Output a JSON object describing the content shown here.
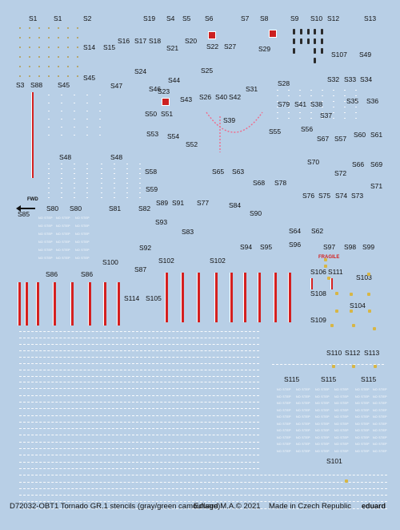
{
  "sheet": {
    "background": "#b8cfe6",
    "labels": [
      "S1",
      "S1",
      "S2",
      "S19",
      "S4",
      "S5",
      "S6",
      "S7",
      "S8",
      "S9",
      "S10",
      "S12",
      "S13",
      "S14",
      "S15",
      "S16",
      "S17",
      "S18",
      "S21",
      "S20",
      "S22",
      "S27",
      "S29",
      "S107",
      "S49",
      "S45",
      "S47",
      "S24",
      "S44",
      "S25",
      "S23",
      "S32",
      "S33",
      "S34",
      "S3",
      "S88",
      "S45",
      "S46",
      "S26",
      "S40",
      "S42",
      "S31",
      "S28",
      "S79",
      "S41",
      "S38",
      "S35",
      "S36",
      "S50",
      "S51",
      "S43",
      "S39",
      "S55",
      "S37",
      "S53",
      "S54",
      "S52",
      "S56",
      "S67",
      "S57",
      "S60",
      "S61",
      "S48",
      "S48",
      "S70",
      "S66",
      "S69",
      "S58",
      "S65",
      "S63",
      "S72",
      "S68",
      "S78",
      "S71",
      "S59",
      "S76",
      "S75",
      "S74",
      "S73",
      "S89",
      "S91",
      "S77",
      "S84",
      "S80",
      "S80",
      "S81",
      "S82",
      "S90",
      "S85",
      "S93",
      "S64",
      "S62",
      "S83",
      "S94",
      "S95",
      "S96",
      "S97",
      "S98",
      "S99",
      "S92",
      "S102",
      "S102",
      "S100",
      "S87",
      "S86",
      "S86",
      "S106",
      "S111",
      "S103",
      "S114",
      "S105",
      "S108",
      "S104",
      "S109",
      "S110",
      "S112",
      "S113",
      "S115",
      "S115",
      "S115",
      "S101"
    ],
    "nostep_text": "NO STEP",
    "fwd_text": "FWD",
    "fragile_text": "FRAGILE",
    "sign_red": "#d42020",
    "dot_color": "#b49a4a"
  },
  "footer": {
    "left": "D72032-OBT1 Tornado GR.1 stencils (gray/green camouflage)",
    "center": "Eduard M.A.© 2021",
    "right": "Made in Czech Republic",
    "brand": "eduard"
  }
}
